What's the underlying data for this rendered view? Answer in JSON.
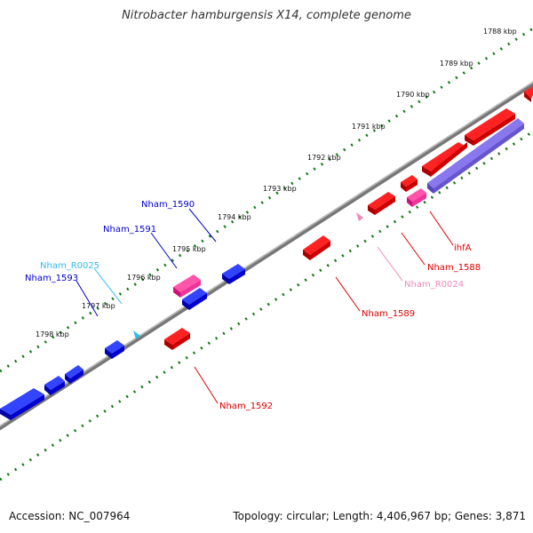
{
  "title": "Nitrobacter hamburgensis X14, complete genome",
  "footer": {
    "accession": "Accession: NC_007964",
    "stats": "Topology: circular; Length: 4,406,967 bp; Genes: 3,871"
  },
  "kbp_ticks": [
    "1788 kbp",
    "1789 kbp",
    "1790 kbp",
    "1791 kbp",
    "1792 kbp",
    "1793 kbp",
    "1794 kbp",
    "1795 kbp",
    "1796 kbp",
    "1797 kbp",
    "1798 kbp"
  ],
  "gene_labels": {
    "nham_1590": "Nham_1590",
    "nham_1591": "Nham_1591",
    "nham_r0025": "Nham_R0025",
    "nham_1593": "Nham_1593",
    "ihfa": "ihfA",
    "nham_1588": "Nham_1588",
    "nham_r0024": "Nham_R0024",
    "nham_1589": "Nham_1589",
    "nham_1592": "Nham_1592"
  },
  "colors": {
    "forward_gene": "#0000dd",
    "reverse_gene": "#dd0000",
    "pseudo_gene": "#ee3399",
    "rna_gene": "#33bbee",
    "trna_gene": "#ee88bb",
    "backbone": "#888888",
    "tick": "#117711"
  }
}
